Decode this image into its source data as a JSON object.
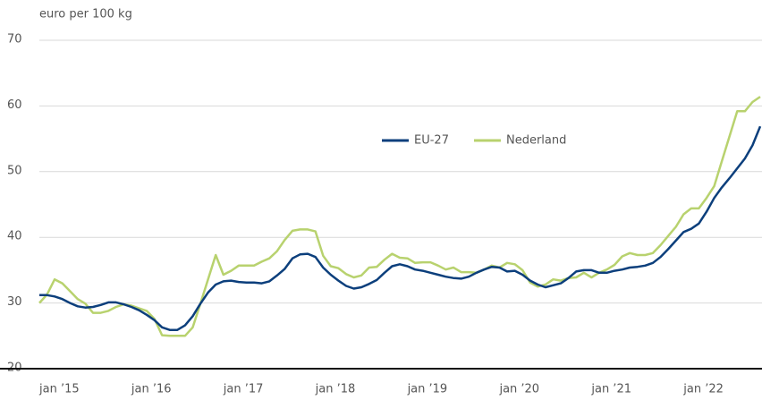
{
  "chart_data": {
    "type": "line",
    "y_axis_label": "euro per 100 kg",
    "categories": [
      "jan ’15",
      null,
      null,
      null,
      null,
      null,
      null,
      null,
      null,
      null,
      null,
      null,
      "jan ’16",
      null,
      null,
      null,
      null,
      null,
      null,
      null,
      null,
      null,
      null,
      null,
      "jan ’17",
      null,
      null,
      null,
      null,
      null,
      null,
      null,
      null,
      null,
      null,
      null,
      "jan ’18",
      null,
      null,
      null,
      null,
      null,
      null,
      null,
      null,
      null,
      null,
      null,
      "jan ’19",
      null,
      null,
      null,
      null,
      null,
      null,
      null,
      null,
      null,
      null,
      null,
      "jan ’20",
      null,
      null,
      null,
      null,
      null,
      null,
      null,
      null,
      null,
      null,
      null,
      "jan ’21",
      null,
      null,
      null,
      null,
      null,
      null,
      null,
      null,
      null,
      null,
      null,
      "jan ’22",
      null,
      null,
      null,
      null,
      null,
      null,
      null,
      null,
      null,
      null
    ],
    "series": [
      {
        "name": "EU-27",
        "color": "#0c3f7c",
        "values": [
          31.2,
          31.2,
          31.0,
          30.6,
          30.0,
          29.5,
          29.3,
          29.4,
          29.7,
          30.1,
          30.1,
          29.8,
          29.4,
          28.9,
          28.2,
          27.4,
          26.3,
          25.9,
          25.9,
          26.6,
          28.0,
          29.9,
          31.6,
          32.8,
          33.3,
          33.4,
          33.2,
          33.1,
          33.1,
          33.0,
          33.3,
          34.2,
          35.2,
          36.8,
          37.4,
          37.5,
          37.0,
          35.4,
          34.3,
          33.4,
          32.6,
          32.2,
          32.4,
          32.9,
          33.5,
          34.6,
          35.6,
          35.9,
          35.6,
          35.1,
          34.9,
          34.6,
          34.3,
          34.0,
          33.8,
          33.7,
          34.0,
          34.6,
          35.1,
          35.5,
          35.4,
          34.8,
          34.9,
          34.3,
          33.4,
          32.8,
          32.4,
          32.7,
          33.0,
          33.8,
          34.8,
          35.0,
          35.0,
          34.6,
          34.6,
          34.9,
          35.1,
          35.4,
          35.5,
          35.7,
          36.1,
          37.0,
          38.2,
          39.5,
          40.8,
          41.3,
          42.1,
          43.9,
          46.0,
          47.6,
          49.0,
          50.5,
          52.0,
          54.0,
          56.9
        ]
      },
      {
        "name": "Nederland",
        "color": "#b8d26e",
        "values": [
          30.0,
          31.3,
          33.6,
          33.0,
          31.8,
          30.6,
          29.9,
          28.5,
          28.5,
          28.8,
          29.4,
          29.8,
          29.6,
          29.2,
          28.8,
          27.6,
          25.1,
          25.0,
          25.0,
          25.0,
          26.3,
          29.9,
          33.6,
          37.3,
          34.3,
          34.9,
          35.7,
          35.7,
          35.7,
          36.3,
          36.8,
          37.9,
          39.6,
          41.0,
          41.2,
          41.2,
          40.9,
          37.2,
          35.6,
          35.3,
          34.4,
          33.9,
          34.2,
          35.4,
          35.5,
          36.6,
          37.5,
          36.9,
          36.8,
          36.1,
          36.2,
          36.2,
          35.7,
          35.1,
          35.4,
          34.7,
          34.7,
          34.6,
          35.1,
          35.7,
          35.4,
          36.1,
          35.9,
          35.0,
          33.1,
          32.5,
          32.8,
          33.6,
          33.4,
          33.8,
          33.9,
          34.6,
          33.9,
          34.6,
          35.1,
          35.8,
          37.1,
          37.6,
          37.3,
          37.3,
          37.6,
          38.8,
          40.2,
          41.6,
          43.5,
          44.4,
          44.4,
          46.0,
          47.8,
          51.6,
          55.4,
          59.2,
          59.2,
          60.6,
          61.4
        ]
      }
    ],
    "ylim": [
      20,
      70
    ],
    "yticks": [
      20,
      30,
      40,
      50,
      60,
      70
    ],
    "grid": true
  }
}
